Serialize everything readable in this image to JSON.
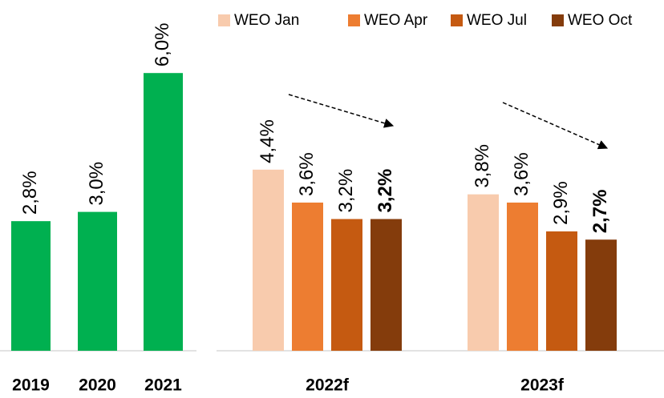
{
  "chart_data": [
    {
      "type": "bar",
      "categories": [
        "2019",
        "2020",
        "2021"
      ],
      "values": [
        2.8,
        3.0,
        6.0
      ],
      "value_labels": [
        "2,8%",
        "3,0%",
        "6,0%"
      ],
      "color": "#00b050"
    },
    {
      "type": "grouped_bar",
      "categories": [
        "2022f",
        "2023f"
      ],
      "series": [
        {
          "name": "WEO Jan",
          "color": "#f8cbad",
          "values": [
            4.4,
            3.8
          ],
          "value_labels": [
            "4,4%",
            "3,8%"
          ]
        },
        {
          "name": "WEO Apr",
          "color": "#ed7d31",
          "values": [
            3.6,
            3.6
          ],
          "value_labels": [
            "3,6%",
            "3,6%"
          ]
        },
        {
          "name": "WEO Jul",
          "color": "#c55a11",
          "values": [
            3.2,
            2.9
          ],
          "value_labels": [
            "3,2%",
            "2,9%"
          ]
        },
        {
          "name": "WEO Oct",
          "color": "#843c0c",
          "values": [
            3.2,
            2.7
          ],
          "value_labels": [
            "3,2%",
            "2,7%"
          ]
        }
      ]
    }
  ]
}
